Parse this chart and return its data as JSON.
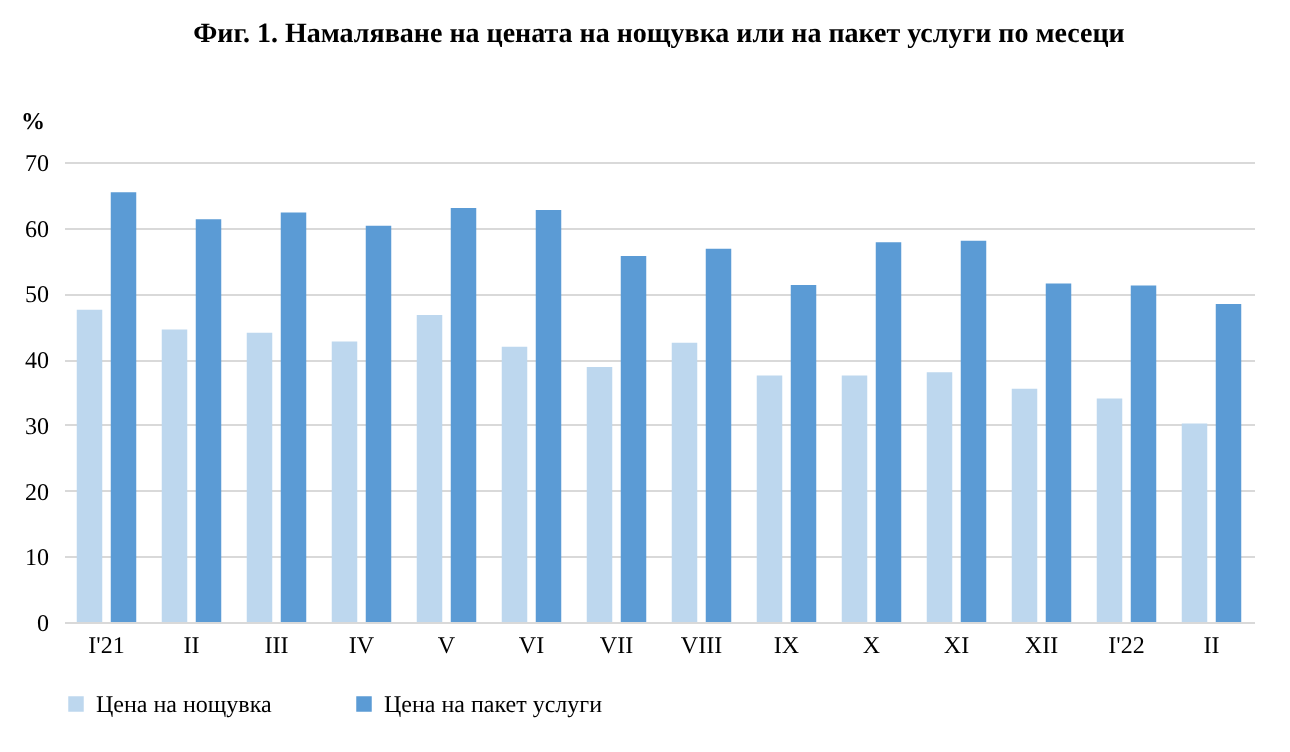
{
  "chart_data": {
    "type": "bar",
    "title": "Фиг. 1. Намаляване на цената на нощувка или на пакет услуги по месеци",
    "ylabel": "%",
    "categories": [
      "I'21",
      "II",
      "III",
      "IV",
      "V",
      "VI",
      "VII",
      "VIII",
      "IX",
      "X",
      "XI",
      "XII",
      "I'22",
      "II"
    ],
    "series": [
      {
        "name": "Цена на нощувка",
        "color": "#bdd7ee",
        "values": [
          47.5,
          44.5,
          44,
          42.7,
          46.7,
          41.9,
          38.8,
          42.5,
          37.5,
          37.5,
          38,
          35.5,
          34,
          30.2
        ]
      },
      {
        "name": "Цена на пакет услуги",
        "color": "#5b9bd5",
        "values": [
          65.4,
          61.3,
          62.3,
          60.3,
          63,
          62.7,
          55.7,
          56.8,
          51.3,
          57.8,
          58,
          51.5,
          51.2,
          48.4
        ]
      }
    ],
    "ylim": [
      0,
      70
    ],
    "yticks": [
      0,
      10,
      20,
      30,
      40,
      50,
      60,
      70
    ],
    "grid": "y",
    "legend": "bottom"
  }
}
